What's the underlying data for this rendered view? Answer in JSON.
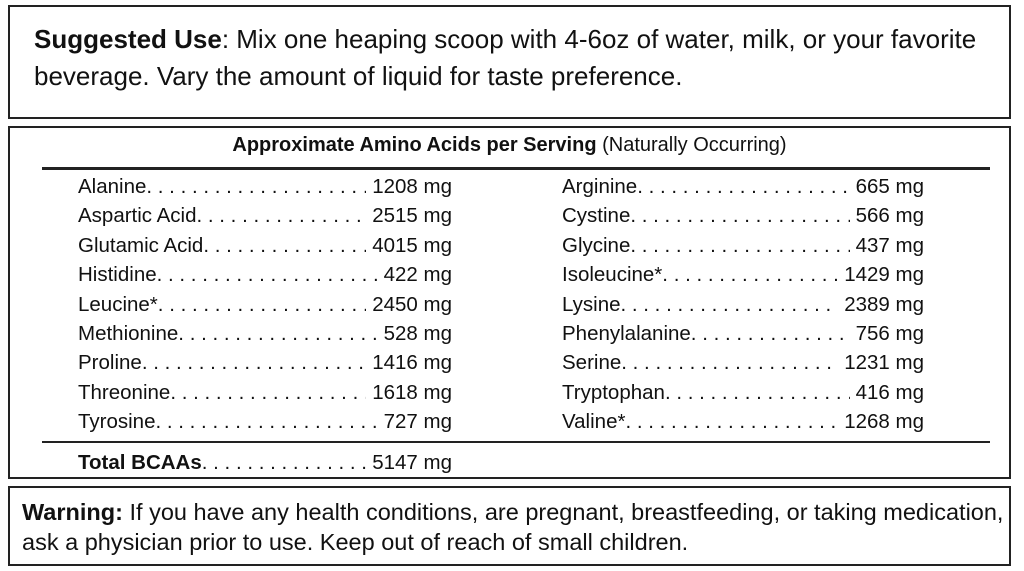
{
  "suggested_use": {
    "label": "Suggested Use",
    "text": ": Mix one heaping scoop with 4-6oz of water, milk, or your favorite beverage. Vary the amount of liquid for taste preference."
  },
  "amino_table": {
    "title": "Approximate Amino Acids per Serving",
    "subtitle": "(Naturally Occurring)",
    "left": [
      {
        "name": "Alanine",
        "value": "1208 mg"
      },
      {
        "name": "Aspartic Acid",
        "value": "2515 mg"
      },
      {
        "name": "Glutamic Acid",
        "value": "4015 mg"
      },
      {
        "name": "Histidine",
        "value": "422 mg"
      },
      {
        "name": "Leucine*",
        "value": "2450 mg"
      },
      {
        "name": "Methionine",
        "value": "528 mg"
      },
      {
        "name": "Proline",
        "value": "1416 mg"
      },
      {
        "name": "Threonine",
        "value": "1618 mg"
      },
      {
        "name": "Tyrosine",
        "value": "727 mg"
      }
    ],
    "right": [
      {
        "name": "Arginine",
        "value": "665 mg"
      },
      {
        "name": "Cystine",
        "value": "566 mg"
      },
      {
        "name": "Glycine",
        "value": "437 mg"
      },
      {
        "name": "Isoleucine*",
        "value": "1429 mg"
      },
      {
        "name": "Lysine",
        "value": "2389 mg"
      },
      {
        "name": "Phenylalanine",
        "value": "756 mg"
      },
      {
        "name": "Serine",
        "value": "1231 mg"
      },
      {
        "name": "Tryptophan",
        "value": "416 mg"
      },
      {
        "name": "Valine*",
        "value": "1268 mg"
      }
    ],
    "total": {
      "name": "Total BCAAs",
      "value": "5147 mg"
    }
  },
  "warning": {
    "label": "Warning:",
    "text": " If you have any health conditions, are pregnant, breastfeeding, or taking medication, ask a physician prior to use. Keep out of reach of small children."
  }
}
